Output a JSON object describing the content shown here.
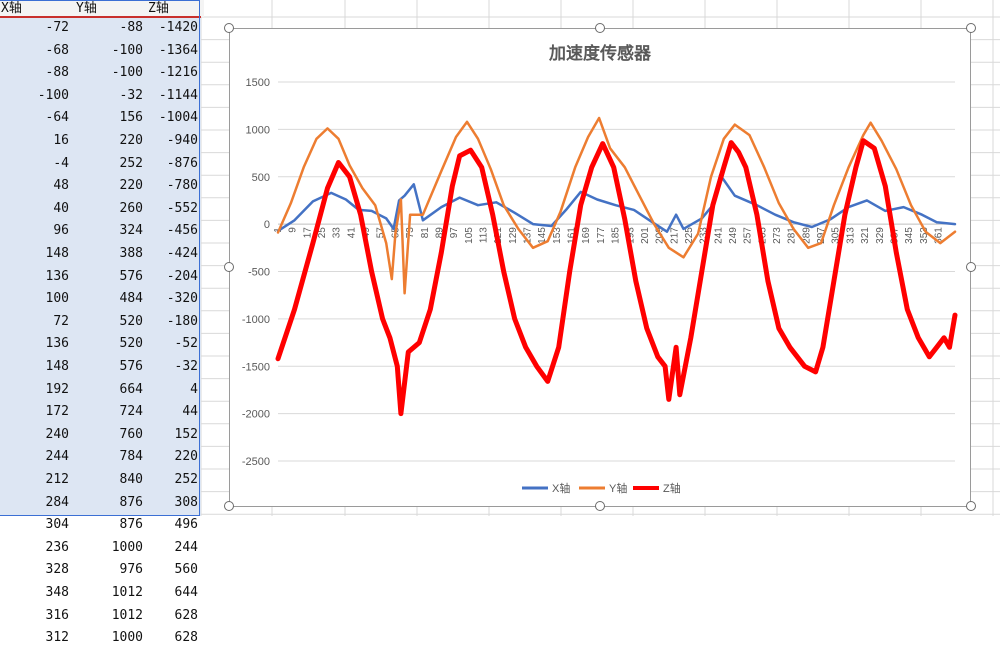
{
  "sheet": {
    "headers": [
      "X轴",
      "Y轴",
      "Z轴"
    ],
    "rows": [
      [
        -72,
        -88,
        -1420
      ],
      [
        -68,
        -100,
        -1364
      ],
      [
        -88,
        -100,
        -1216
      ],
      [
        -100,
        -32,
        -1144
      ],
      [
        -64,
        156,
        -1004
      ],
      [
        16,
        220,
        -940
      ],
      [
        -4,
        252,
        -876
      ],
      [
        48,
        220,
        -780
      ],
      [
        40,
        260,
        -552
      ],
      [
        96,
        324,
        -456
      ],
      [
        148,
        388,
        -424
      ],
      [
        136,
        576,
        -204
      ],
      [
        100,
        484,
        -320
      ],
      [
        72,
        520,
        -180
      ],
      [
        136,
        520,
        -52
      ],
      [
        148,
        576,
        -32
      ],
      [
        192,
        664,
        4
      ],
      [
        172,
        724,
        44
      ],
      [
        240,
        760,
        152
      ],
      [
        244,
        784,
        220
      ],
      [
        212,
        840,
        252
      ],
      [
        284,
        876,
        308
      ],
      [
        304,
        876,
        496
      ],
      [
        236,
        1000,
        244
      ],
      [
        328,
        976,
        560
      ],
      [
        348,
        1012,
        644
      ],
      [
        316,
        1012,
        628
      ],
      [
        312,
        1000,
        628
      ]
    ]
  },
  "colors": {
    "x_series": "#4472c4",
    "y_series": "#ed7d31",
    "z_series": "#ff0000",
    "selection": "#dde6f3",
    "selection_border": "#3b6fd4"
  },
  "chart_data": {
    "type": "line",
    "title": "加速度传感器",
    "xlabel": "",
    "ylabel": "",
    "ylim": [
      -2500,
      1500
    ],
    "yticks": [
      1500,
      1000,
      500,
      0,
      -500,
      -1000,
      -1500,
      -2000,
      -2500
    ],
    "xticks": [
      1,
      9,
      17,
      25,
      33,
      41,
      49,
      57,
      65,
      73,
      81,
      89,
      97,
      105,
      113,
      121,
      129,
      137,
      145,
      153,
      161,
      169,
      177,
      185,
      193,
      201,
      209,
      217,
      225,
      233,
      241,
      249,
      257,
      265,
      273,
      281,
      289,
      297,
      305,
      313,
      321,
      329,
      337,
      345,
      353,
      361
    ],
    "xcount": 370,
    "legend": "bottom",
    "grid": true,
    "series": [
      {
        "name": "X轴",
        "points": [
          [
            1,
            -72
          ],
          [
            10,
            40
          ],
          [
            20,
            240
          ],
          [
            30,
            330
          ],
          [
            38,
            260
          ],
          [
            45,
            150
          ],
          [
            52,
            140
          ],
          [
            60,
            60
          ],
          [
            64,
            -50
          ],
          [
            67,
            250
          ],
          [
            70,
            300
          ],
          [
            75,
            420
          ],
          [
            80,
            40
          ],
          [
            90,
            180
          ],
          [
            100,
            280
          ],
          [
            110,
            200
          ],
          [
            120,
            230
          ],
          [
            130,
            120
          ],
          [
            140,
            0
          ],
          [
            150,
            -20
          ],
          [
            158,
            150
          ],
          [
            166,
            340
          ],
          [
            175,
            260
          ],
          [
            185,
            200
          ],
          [
            195,
            150
          ],
          [
            205,
            20
          ],
          [
            213,
            -80
          ],
          [
            218,
            100
          ],
          [
            222,
            -50
          ],
          [
            232,
            60
          ],
          [
            238,
            200
          ],
          [
            242,
            520
          ],
          [
            250,
            300
          ],
          [
            262,
            200
          ],
          [
            272,
            100
          ],
          [
            282,
            20
          ],
          [
            292,
            -30
          ],
          [
            302,
            50
          ],
          [
            312,
            180
          ],
          [
            322,
            250
          ],
          [
            332,
            140
          ],
          [
            342,
            180
          ],
          [
            352,
            100
          ],
          [
            360,
            20
          ],
          [
            370,
            0
          ]
        ]
      },
      {
        "name": "Y轴",
        "points": [
          [
            1,
            -88
          ],
          [
            8,
            220
          ],
          [
            15,
            600
          ],
          [
            22,
            900
          ],
          [
            28,
            1010
          ],
          [
            34,
            900
          ],
          [
            40,
            620
          ],
          [
            47,
            380
          ],
          [
            54,
            200
          ],
          [
            60,
            -200
          ],
          [
            63,
            -580
          ],
          [
            65,
            -100
          ],
          [
            68,
            260
          ],
          [
            70,
            -730
          ],
          [
            73,
            100
          ],
          [
            80,
            100
          ],
          [
            90,
            560
          ],
          [
            98,
            920
          ],
          [
            104,
            1080
          ],
          [
            110,
            900
          ],
          [
            117,
            580
          ],
          [
            124,
            200
          ],
          [
            132,
            -50
          ],
          [
            140,
            -250
          ],
          [
            148,
            -180
          ],
          [
            155,
            130
          ],
          [
            163,
            600
          ],
          [
            170,
            920
          ],
          [
            176,
            1120
          ],
          [
            182,
            800
          ],
          [
            190,
            600
          ],
          [
            198,
            300
          ],
          [
            206,
            0
          ],
          [
            214,
            -250
          ],
          [
            222,
            -350
          ],
          [
            230,
            -100
          ],
          [
            237,
            500
          ],
          [
            244,
            900
          ],
          [
            250,
            1050
          ],
          [
            258,
            940
          ],
          [
            266,
            600
          ],
          [
            274,
            220
          ],
          [
            282,
            -50
          ],
          [
            290,
            -250
          ],
          [
            297,
            -200
          ],
          [
            304,
            200
          ],
          [
            312,
            600
          ],
          [
            320,
            940
          ],
          [
            324,
            1070
          ],
          [
            330,
            880
          ],
          [
            338,
            580
          ],
          [
            346,
            200
          ],
          [
            354,
            -80
          ],
          [
            362,
            -200
          ],
          [
            370,
            -80
          ]
        ]
      },
      {
        "name": "Z轴",
        "points": [
          [
            1,
            -1420
          ],
          [
            10,
            -900
          ],
          [
            20,
            -200
          ],
          [
            28,
            380
          ],
          [
            34,
            650
          ],
          [
            40,
            500
          ],
          [
            46,
            100
          ],
          [
            52,
            -500
          ],
          [
            58,
            -1000
          ],
          [
            62,
            -1200
          ],
          [
            66,
            -1500
          ],
          [
            68,
            -2000
          ],
          [
            72,
            -1350
          ],
          [
            78,
            -1250
          ],
          [
            84,
            -900
          ],
          [
            90,
            -300
          ],
          [
            96,
            400
          ],
          [
            100,
            720
          ],
          [
            106,
            780
          ],
          [
            112,
            600
          ],
          [
            118,
            100
          ],
          [
            124,
            -500
          ],
          [
            130,
            -1000
          ],
          [
            136,
            -1300
          ],
          [
            142,
            -1500
          ],
          [
            148,
            -1660
          ],
          [
            154,
            -1300
          ],
          [
            160,
            -500
          ],
          [
            166,
            200
          ],
          [
            172,
            600
          ],
          [
            178,
            850
          ],
          [
            184,
            600
          ],
          [
            190,
            50
          ],
          [
            196,
            -600
          ],
          [
            202,
            -1100
          ],
          [
            208,
            -1400
          ],
          [
            212,
            -1500
          ],
          [
            214,
            -1850
          ],
          [
            218,
            -1300
          ],
          [
            220,
            -1800
          ],
          [
            226,
            -1200
          ],
          [
            232,
            -500
          ],
          [
            238,
            200
          ],
          [
            244,
            600
          ],
          [
            248,
            860
          ],
          [
            252,
            760
          ],
          [
            256,
            600
          ],
          [
            262,
            100
          ],
          [
            268,
            -600
          ],
          [
            274,
            -1100
          ],
          [
            280,
            -1300
          ],
          [
            288,
            -1500
          ],
          [
            294,
            -1560
          ],
          [
            298,
            -1300
          ],
          [
            304,
            -600
          ],
          [
            310,
            100
          ],
          [
            316,
            600
          ],
          [
            320,
            880
          ],
          [
            326,
            800
          ],
          [
            332,
            400
          ],
          [
            338,
            -300
          ],
          [
            344,
            -900
          ],
          [
            350,
            -1200
          ],
          [
            356,
            -1400
          ],
          [
            360,
            -1300
          ],
          [
            364,
            -1200
          ],
          [
            367,
            -1300
          ],
          [
            370,
            -960
          ]
        ]
      }
    ]
  }
}
